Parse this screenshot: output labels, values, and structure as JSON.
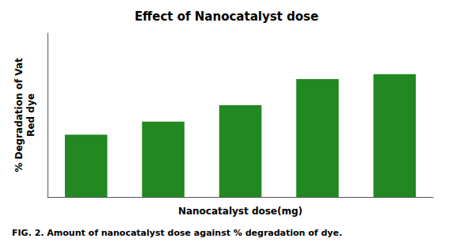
{
  "chart_data": {
    "type": "bar",
    "title": "Effect of Nanocatalyst dose",
    "xlabel": "Nanocatalyst dose(mg)",
    "ylabel": "% Degradation of Vat\nRed dye",
    "caption": "FIG. 2. Amount of nanocatalyst dose against % degradation of dye.",
    "categories": [
      null,
      null,
      null,
      null,
      null
    ],
    "values": [
      38,
      46,
      56,
      72,
      75
    ],
    "color": "#228822",
    "ylim": [
      0,
      100
    ],
    "yticks": [],
    "grid": false,
    "tick_labels": false
  }
}
